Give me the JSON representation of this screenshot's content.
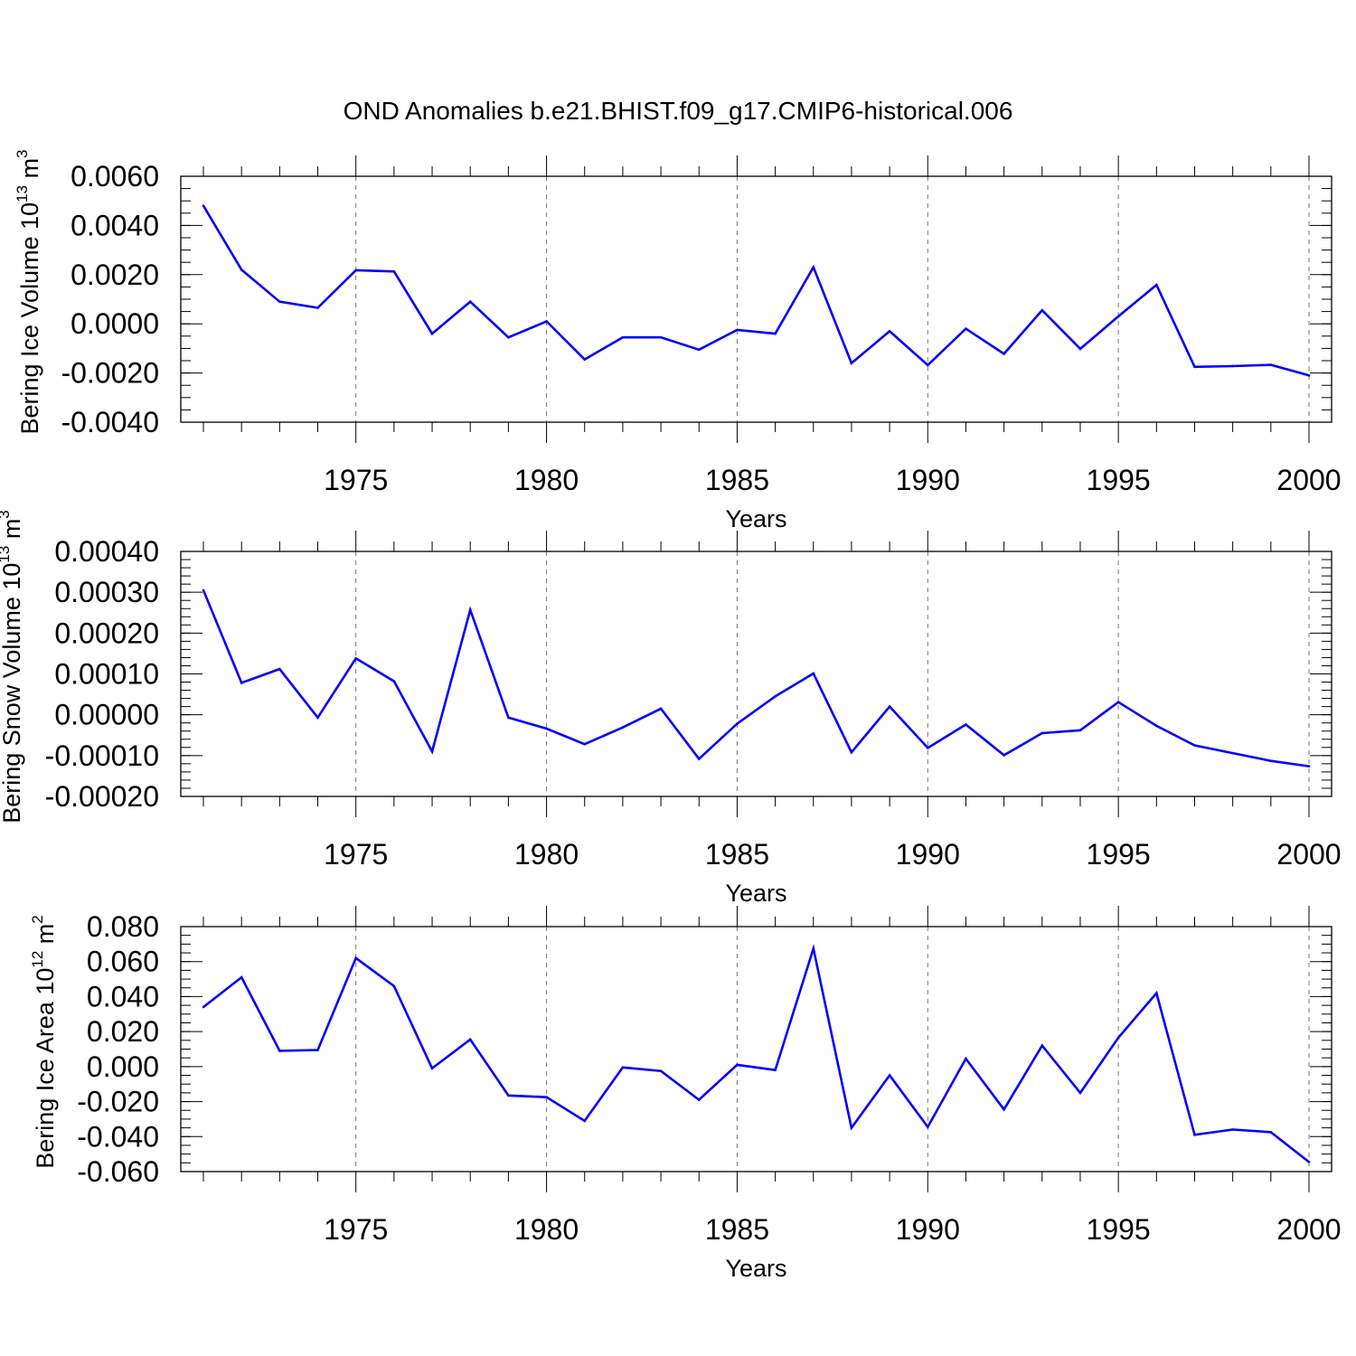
{
  "title": "OND Anomalies b.e21.BHIST.f09_g17.CMIP6-historical.006",
  "colors": {
    "series": "#0000ff",
    "grid": "#777777",
    "axis": "#000000"
  },
  "chart_data": [
    {
      "type": "line",
      "ylabel_main": "Bering Ice Volume 10",
      "ylabel_exp": "13",
      "ylabel_unit": " m",
      "ylabel_unit_exp": "3",
      "xlabel": "Years",
      "xlim": [
        1971,
        2000
      ],
      "ylim": [
        -0.004,
        0.006
      ],
      "xticks": [
        1975,
        1980,
        1985,
        1990,
        1995,
        2000
      ],
      "yticks": [
        -0.004,
        -0.002,
        0.0,
        0.002,
        0.004,
        0.006
      ],
      "ytick_labels": [
        "-0.0040",
        "-0.0020",
        "0.0000",
        "0.0020",
        "0.0040",
        "0.0060"
      ],
      "ytick_minor_step": 0.0005,
      "grid": "vertical dashed at major x ticks",
      "x": [
        1971,
        1972,
        1973,
        1974,
        1975,
        1976,
        1977,
        1978,
        1979,
        1980,
        1981,
        1982,
        1983,
        1984,
        1985,
        1986,
        1987,
        1988,
        1989,
        1990,
        1991,
        1992,
        1993,
        1994,
        1995,
        1996,
        1997,
        1998,
        1999,
        2000
      ],
      "values": [
        0.0048,
        0.0022,
        0.0009,
        0.00065,
        0.00218,
        0.00213,
        -0.0004,
        0.0009,
        -0.00055,
        0.0001,
        -0.00145,
        -0.00055,
        -0.00055,
        -0.00105,
        -0.00025,
        -0.0004,
        0.0023,
        -0.0016,
        -0.0003,
        -0.00168,
        -0.0002,
        -0.00122,
        0.00055,
        -0.00102,
        0.0003,
        0.00158,
        -0.00175,
        -0.00172,
        -0.00167,
        -0.0021
      ]
    },
    {
      "type": "line",
      "ylabel_main": "Bering Snow Volume 10",
      "ylabel_exp": "13",
      "ylabel_unit": " m",
      "ylabel_unit_exp": "3",
      "xlabel": "Years",
      "xlim": [
        1971,
        2000
      ],
      "ylim": [
        -0.0002,
        0.0004
      ],
      "xticks": [
        1975,
        1980,
        1985,
        1990,
        1995,
        2000
      ],
      "yticks": [
        -0.0002,
        -0.0001,
        0.0,
        0.0001,
        0.0002,
        0.0003,
        0.0004
      ],
      "ytick_labels": [
        "-0.00020",
        "-0.00010",
        "0.00000",
        "0.00010",
        "0.00020",
        "0.00030",
        "0.00040"
      ],
      "ytick_minor_step": 2e-05,
      "grid": "vertical dashed at major x ticks",
      "x": [
        1971,
        1972,
        1973,
        1974,
        1975,
        1976,
        1977,
        1978,
        1979,
        1980,
        1981,
        1982,
        1983,
        1984,
        1985,
        1986,
        1987,
        1988,
        1989,
        1990,
        1991,
        1992,
        1993,
        1994,
        1995,
        1996,
        1997,
        1998,
        1999,
        2000
      ],
      "values": [
        0.000305,
        7.8e-05,
        0.000112,
        -7e-06,
        0.000138,
        8.2e-05,
        -9e-05,
        0.000257,
        -7e-06,
        -3.4e-05,
        -7.2e-05,
        -3.1e-05,
        1.5e-05,
        -0.000108,
        -2.2e-05,
        4.5e-05,
        0.000101,
        -9.2e-05,
        2e-05,
        -8.1e-05,
        -2.4e-05,
        -9.9e-05,
        -4.5e-05,
        -3.8e-05,
        3.1e-05,
        -2.7e-05,
        -7.5e-05,
        -9.4e-05,
        -0.000113,
        -0.000126
      ]
    },
    {
      "type": "line",
      "ylabel_main": "Bering Ice Area 10",
      "ylabel_exp": "12",
      "ylabel_unit": " m",
      "ylabel_unit_exp": "2",
      "xlabel": "Years",
      "xlim": [
        1971,
        2000
      ],
      "ylim": [
        -0.06,
        0.08
      ],
      "xticks": [
        1975,
        1980,
        1985,
        1990,
        1995,
        2000
      ],
      "yticks": [
        -0.06,
        -0.04,
        -0.02,
        0.0,
        0.02,
        0.04,
        0.06,
        0.08
      ],
      "ytick_labels": [
        "-0.060",
        "-0.040",
        "-0.020",
        "0.000",
        "0.020",
        "0.040",
        "0.060",
        "0.080"
      ],
      "ytick_minor_step": 0.005,
      "grid": "vertical dashed at major x ticks",
      "x": [
        1971,
        1972,
        1973,
        1974,
        1975,
        1976,
        1977,
        1978,
        1979,
        1980,
        1981,
        1982,
        1983,
        1984,
        1985,
        1986,
        1987,
        1988,
        1989,
        1990,
        1991,
        1992,
        1993,
        1994,
        1995,
        1996,
        1997,
        1998,
        1999,
        2000
      ],
      "values": [
        0.034,
        0.051,
        0.009,
        0.0095,
        0.062,
        0.046,
        -0.001,
        0.0155,
        -0.0165,
        -0.0175,
        -0.031,
        -0.0005,
        -0.0025,
        -0.019,
        0.001,
        -0.002,
        0.0675,
        -0.035,
        -0.005,
        -0.0345,
        0.0045,
        -0.0245,
        0.012,
        -0.015,
        0.0165,
        0.042,
        -0.039,
        -0.036,
        -0.0375,
        -0.0545
      ]
    }
  ]
}
